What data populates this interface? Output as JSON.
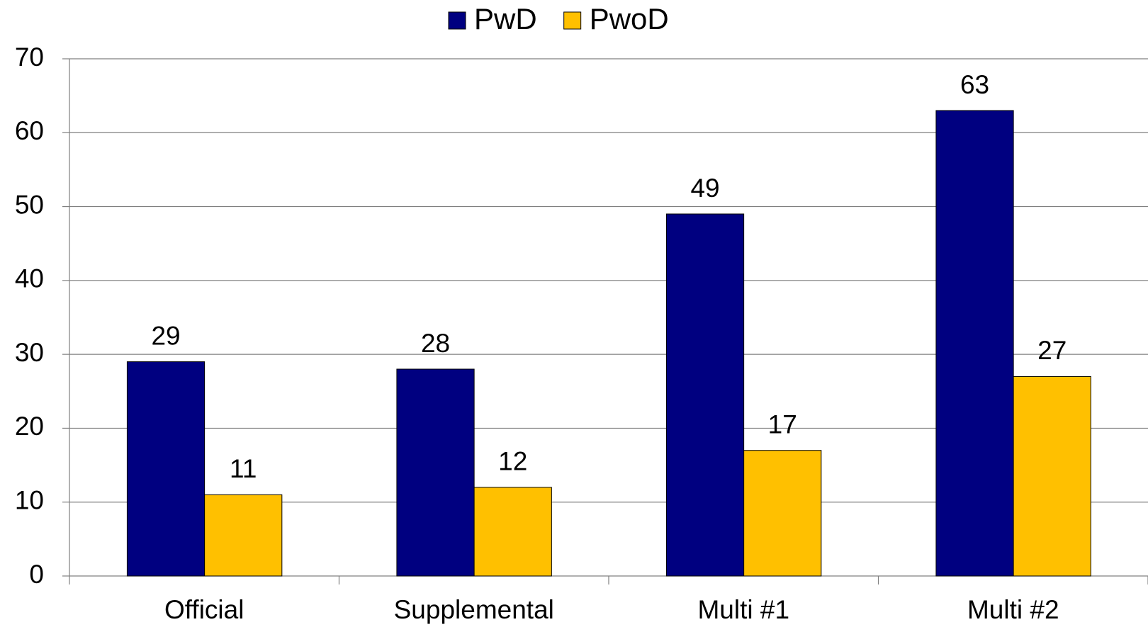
{
  "chart_data": {
    "type": "bar",
    "categories": [
      "Official",
      "Supplemental",
      "Multi #1",
      "Multi #2"
    ],
    "series": [
      {
        "name": "PwD",
        "color": "#000080",
        "values": [
          29,
          28,
          49,
          63
        ]
      },
      {
        "name": "PwoD",
        "color": "#ffc000",
        "values": [
          11,
          12,
          17,
          27
        ]
      }
    ],
    "ylim": [
      0,
      70
    ],
    "yticks": [
      0,
      10,
      20,
      30,
      40,
      50,
      60,
      70
    ],
    "grid": true,
    "legend": "top"
  }
}
